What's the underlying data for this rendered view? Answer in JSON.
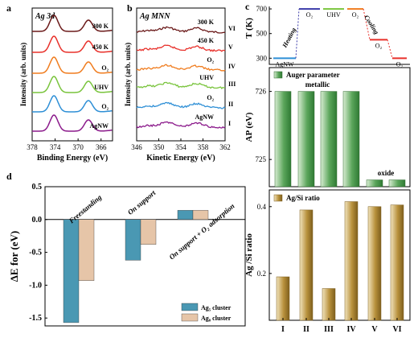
{
  "panels": {
    "a": "a",
    "b": "b",
    "c": "c",
    "d": "d"
  },
  "chart_data": [
    {
      "panel": "a",
      "type": "line",
      "title": "Ag 3d",
      "xlabel": "Binding Energy (eV)",
      "ylabel": "Intensity (arb. units)",
      "xlim": [
        378,
        364
      ],
      "xticks": [
        "378",
        "374",
        "370",
        "366"
      ],
      "series": [
        {
          "name": "300 K",
          "color": "#6b1a1a",
          "offset": 5
        },
        {
          "name": "450 K",
          "color": "#e8302a",
          "offset": 4
        },
        {
          "name": "O₂",
          "color": "#f07c1e",
          "offset": 3
        },
        {
          "name": "UHV",
          "color": "#79c43c",
          "offset": 2
        },
        {
          "name": "O₂",
          "color": "#2e8fd6",
          "offset": 1
        },
        {
          "name": "AgNW",
          "color": "#8b1a8b",
          "offset": 0
        }
      ]
    },
    {
      "panel": "b",
      "type": "line",
      "title": "Ag MNN",
      "xlabel": "Kinetic Energy (eV)",
      "ylabel": "Intensity (arb. units)",
      "xlim": [
        346,
        362
      ],
      "xticks": [
        "346",
        "350",
        "354",
        "358",
        "362"
      ],
      "series": [
        {
          "name": "300 K",
          "roman": "VI",
          "color": "#6b1a1a"
        },
        {
          "name": "450 K",
          "roman": "V",
          "color": "#e8302a"
        },
        {
          "name": "O₂",
          "roman": "IV",
          "color": "#f07c1e"
        },
        {
          "name": "UHV",
          "roman": "III",
          "color": "#79c43c"
        },
        {
          "name": "O₂",
          "roman": "II",
          "color": "#2e8fd6"
        },
        {
          "name": "AgNW",
          "roman": "I",
          "color": "#8b1a8b"
        }
      ]
    },
    {
      "panel": "c-top",
      "type": "line",
      "ylabel": "T (K)",
      "ylim": [
        250,
        720
      ],
      "yticks": [
        "300",
        "500",
        "700"
      ],
      "steps": [
        {
          "label": "AgNW",
          "T": 300,
          "color": "#2e8fd6"
        },
        {
          "label": "O₂",
          "T": 700,
          "color": "#3a3aa8"
        },
        {
          "label": "UHV",
          "T": 700,
          "color": "#79c43c"
        },
        {
          "label": "O₂",
          "T": 700,
          "color": "#f07c1e"
        },
        {
          "label": "O₂",
          "T": 450,
          "color": "#e8302a"
        },
        {
          "label": "O₂",
          "T": 300,
          "color": "#e8302a"
        }
      ],
      "annotations": [
        "Heating",
        "Cooling"
      ]
    },
    {
      "panel": "c-mid",
      "type": "bar",
      "legend": "Auger parameter",
      "ylabel": "AP (eV)",
      "ylim": [
        724.6,
        726.35
      ],
      "yticks": [
        "725",
        "726"
      ],
      "values": [
        726.0,
        726.0,
        726.0,
        726.0,
        724.7,
        724.7
      ],
      "annotations": [
        "metallic",
        "oxide"
      ],
      "color": "#5aa55a"
    },
    {
      "panel": "c-bot",
      "type": "bar",
      "legend": "Ag/Si ratio",
      "ylabel": "Ag /Si  ratio",
      "ylim": [
        0.06,
        0.45
      ],
      "yticks": [
        "0.2",
        "0.4"
      ],
      "categories": [
        "I",
        "II",
        "III",
        "IV",
        "V",
        "VI"
      ],
      "values": [
        0.19,
        0.39,
        0.155,
        0.415,
        0.4,
        0.405
      ],
      "color": "#b8913c"
    },
    {
      "panel": "d",
      "type": "bar",
      "ylabel": "ΔE for (eV)",
      "ylim": [
        -1.62,
        0.5
      ],
      "yticks": [
        "0.5",
        "0.0",
        "-0.5",
        "-1.0",
        "-1.5"
      ],
      "categories": [
        "Freestanding",
        "On support",
        "On support + O₂ adsorption"
      ],
      "series": [
        {
          "name": "Ag₅ cluster",
          "values": [
            -1.57,
            -0.62,
            0.14
          ],
          "color": "#4a98b3"
        },
        {
          "name": "Ag₈ cluster",
          "values": [
            -0.93,
            -0.38,
            0.14
          ],
          "color": "#e6c5a8"
        }
      ]
    }
  ]
}
